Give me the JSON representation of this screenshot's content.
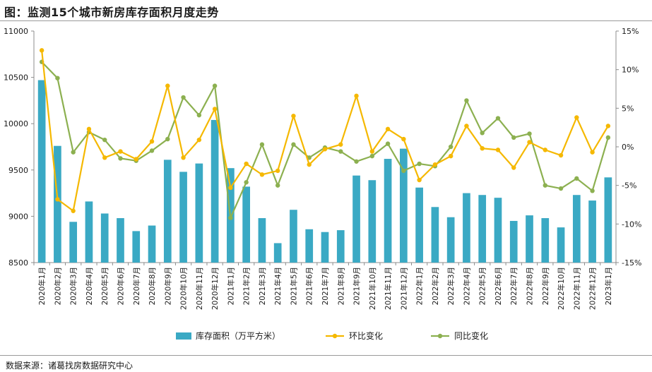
{
  "title": "图：监测15个城市新房库存面积月度走势",
  "source": "数据来源：诸葛找房数据研究中心",
  "colors": {
    "bar": "#3aa9c4",
    "mom": "#f5b800",
    "yoy": "#8cb050",
    "axis": "#8c8c8c"
  },
  "chart_data": {
    "type": "bar",
    "categories": [
      "2020年1月",
      "2020年2月",
      "2020年3月",
      "2020年4月",
      "2020年5月",
      "2020年6月",
      "2020年7月",
      "2020年8月",
      "2020年9月",
      "2020年10月",
      "2020年11月",
      "2020年12月",
      "2021年1月",
      "2021年2月",
      "2021年3月",
      "2021年4月",
      "2021年5月",
      "2021年6月",
      "2021年7月",
      "2021年8月",
      "2021年9月",
      "2021年10月",
      "2021年11月",
      "2021年12月",
      "2022年1月",
      "2022年2月",
      "2022年3月",
      "2022年4月",
      "2022年5月",
      "2022年6月",
      "2022年7月",
      "2022年8月",
      "2022年9月",
      "2022年10月",
      "2022年11月",
      "2022年12月",
      "2023年1月"
    ],
    "y_left": {
      "lim": [
        8500,
        11000
      ],
      "ticks": [
        "8500",
        "9000",
        "9500",
        "10000",
        "10500",
        "11000"
      ]
    },
    "y_right": {
      "lim": [
        -15,
        15
      ],
      "ticks": [
        "-15%",
        "-10%",
        "-5%",
        "0%",
        "5%",
        "10%",
        "15%"
      ]
    },
    "series": [
      {
        "name": "库存面积（万平方米）",
        "type": "bar",
        "axis": "left",
        "values": [
          10470,
          9760,
          8940,
          9160,
          9030,
          8980,
          8840,
          8900,
          9610,
          9480,
          9570,
          10040,
          9520,
          9320,
          8980,
          8710,
          9070,
          8860,
          8830,
          8850,
          9440,
          9390,
          9620,
          9730,
          9310,
          9100,
          8990,
          9250,
          9230,
          9200,
          8950,
          9010,
          8980,
          8880,
          9230,
          9170,
          9420
        ]
      },
      {
        "name": "环比变化",
        "type": "line",
        "axis": "right",
        "values": [
          12.5,
          -6.8,
          -8.3,
          2.3,
          -1.4,
          -0.6,
          -1.6,
          0.7,
          7.9,
          -1.4,
          0.9,
          4.9,
          -5.3,
          -2.2,
          -3.6,
          -3.1,
          4.0,
          -2.3,
          -0.3,
          0.3,
          6.6,
          -0.6,
          2.3,
          1.0,
          -4.3,
          -2.3,
          -1.2,
          2.7,
          -0.2,
          -0.4,
          -2.7,
          0.6,
          -0.4,
          -1.1,
          3.8,
          -0.7,
          2.7
        ]
      },
      {
        "name": "同比变化",
        "type": "line",
        "axis": "right",
        "values": [
          11.0,
          8.9,
          -0.7,
          1.9,
          0.9,
          -1.5,
          -1.8,
          -0.5,
          1.0,
          6.4,
          4.1,
          7.9,
          -9.2,
          -4.6,
          0.3,
          -5.0,
          0.3,
          -1.4,
          -0.1,
          -0.6,
          -1.9,
          -1.2,
          0.4,
          -3.1,
          -2.2,
          -2.5,
          0.0,
          6.0,
          1.8,
          3.7,
          1.2,
          1.7,
          -5.0,
          -5.4,
          -4.1,
          -5.7,
          1.2
        ]
      }
    ]
  }
}
